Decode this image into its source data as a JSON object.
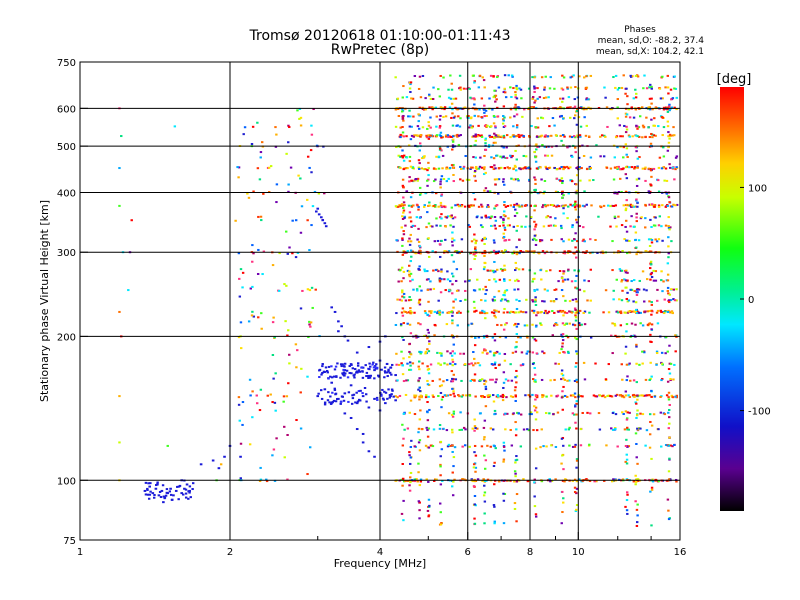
{
  "chart_data": {
    "type": "scatter",
    "title": "Tromsø 20120618 01:10:00-01:11:43",
    "subtitle": "RwPretec (8p)",
    "xlabel": "Frequency [MHz]",
    "ylabel": "Stationary phase Virtual Height [km]",
    "x_scale": "log",
    "y_scale": "log",
    "xlim": [
      1,
      16
    ],
    "ylim": [
      75,
      750
    ],
    "x_ticks": [
      1,
      2,
      4,
      6,
      8,
      10,
      16
    ],
    "x_tick_labels": [
      "1",
      "2",
      "4",
      "6",
      "8",
      "10",
      "16"
    ],
    "y_ticks": [
      75,
      100,
      200,
      300,
      400,
      500,
      600,
      750
    ],
    "y_tick_labels": [
      "75",
      "100",
      "200",
      "300",
      "400",
      "500",
      "600",
      "750"
    ],
    "grid": true,
    "stats": {
      "heading": "Phases",
      "line_o": "mean, sd,O: -88.2, 37.4",
      "line_x": "mean, sd,X: 104.2, 42.1"
    },
    "colorbar": {
      "label": "[deg]",
      "ticks": [
        100,
        0,
        -100
      ],
      "tick_labels": [
        "100",
        "0",
        "-100"
      ],
      "range": [
        -190,
        190
      ]
    },
    "x_trace_points": [
      [
        1.35,
        95
      ],
      [
        1.38,
        97
      ],
      [
        1.4,
        94
      ],
      [
        1.42,
        96
      ],
      [
        1.44,
        93
      ],
      [
        1.46,
        95
      ],
      [
        1.48,
        92
      ],
      [
        1.5,
        94
      ],
      [
        1.52,
        96
      ],
      [
        1.54,
        93
      ],
      [
        1.56,
        95
      ],
      [
        1.58,
        97
      ],
      [
        1.6,
        94
      ],
      [
        1.62,
        96
      ],
      [
        1.64,
        98
      ],
      [
        1.66,
        95
      ],
      [
        1.47,
        90
      ],
      [
        1.53,
        91
      ],
      [
        1.43,
        98
      ],
      [
        1.6,
        100
      ],
      [
        1.75,
        108
      ],
      [
        1.85,
        110
      ],
      [
        1.9,
        106
      ],
      [
        1.95,
        112
      ],
      [
        2.0,
        118
      ],
      [
        2.1,
        112
      ],
      [
        3.0,
        370
      ],
      [
        3.02,
        360
      ],
      [
        3.05,
        355
      ],
      [
        3.07,
        350
      ],
      [
        3.1,
        345
      ],
      [
        3.12,
        340
      ],
      [
        2.98,
        365
      ],
      [
        3.2,
        230
      ],
      [
        3.25,
        225
      ],
      [
        3.3,
        215
      ],
      [
        3.35,
        210
      ],
      [
        3.3,
        205
      ],
      [
        3.4,
        200
      ],
      [
        3.45,
        196
      ],
      [
        3.0,
        150
      ],
      [
        3.1,
        155
      ],
      [
        3.2,
        160
      ],
      [
        3.3,
        148
      ],
      [
        3.4,
        152
      ],
      [
        3.5,
        158
      ],
      [
        3.6,
        145
      ],
      [
        3.7,
        150
      ],
      [
        3.8,
        142
      ],
      [
        3.9,
        148
      ],
      [
        4.0,
        140
      ],
      [
        4.1,
        145
      ],
      [
        4.2,
        150
      ],
      [
        4.3,
        147
      ],
      [
        3.4,
        170
      ],
      [
        3.5,
        175
      ],
      [
        3.6,
        168
      ],
      [
        3.7,
        172
      ],
      [
        3.8,
        165
      ],
      [
        3.9,
        170
      ],
      [
        4.0,
        178
      ],
      [
        4.1,
        168
      ],
      [
        4.2,
        172
      ],
      [
        4.3,
        166
      ],
      [
        3.6,
        185
      ],
      [
        3.8,
        190
      ],
      [
        4.0,
        195
      ],
      [
        4.1,
        200
      ],
      [
        3.5,
        135
      ],
      [
        3.6,
        128
      ],
      [
        3.7,
        120
      ],
      [
        3.8,
        115
      ],
      [
        3.9,
        112
      ],
      [
        3.4,
        138
      ],
      [
        3.7,
        125
      ]
    ]
  }
}
